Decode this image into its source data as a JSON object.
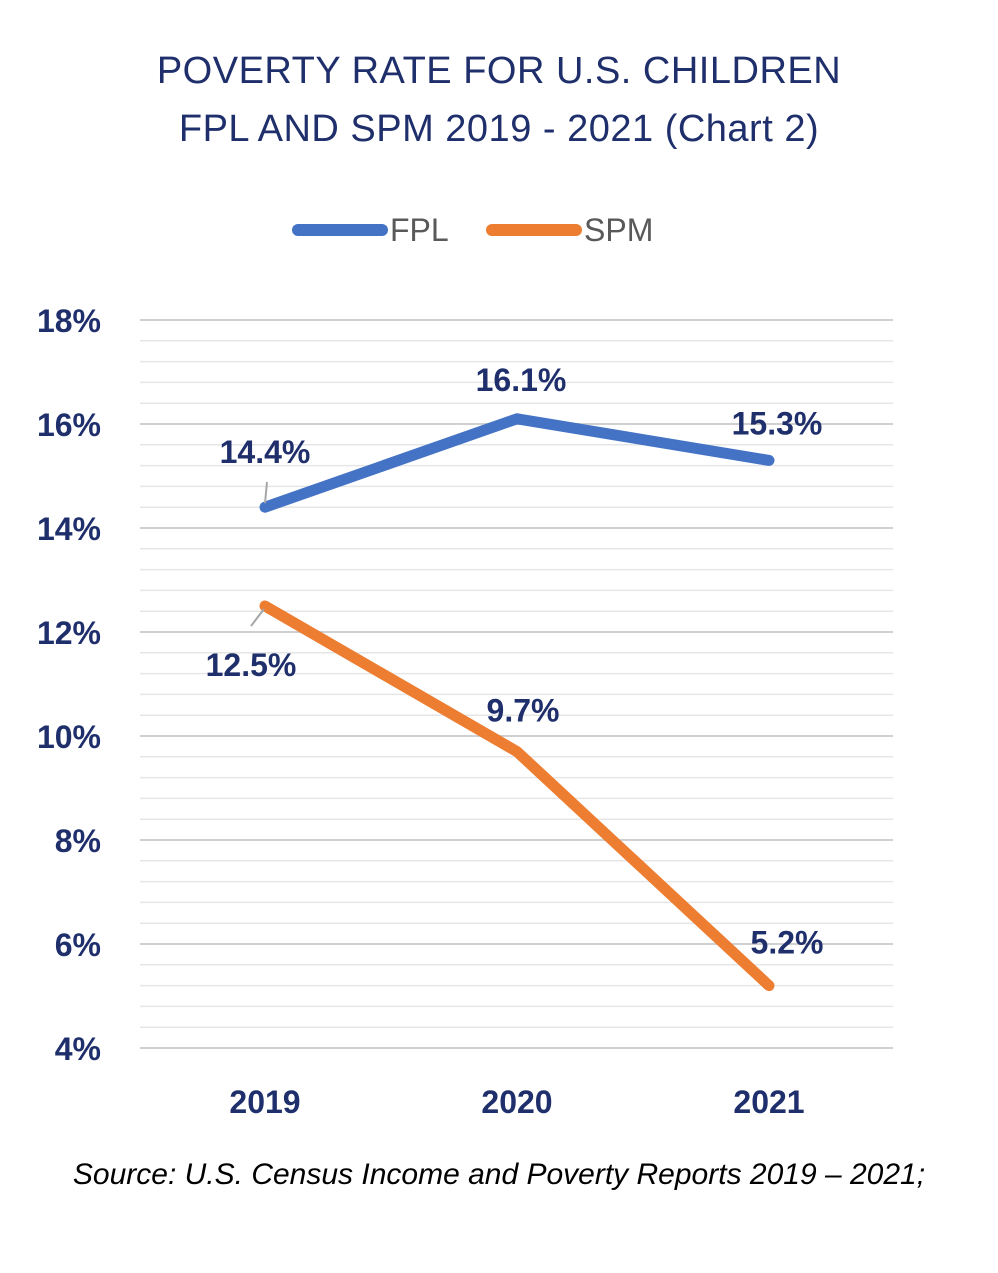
{
  "title_line1": "POVERTY RATE FOR U.S. CHILDREN",
  "title_line2": "FPL AND SPM 2019 - 2021 (Chart 2)",
  "source": "Source: U.S. Census Income and Poverty Reports 2019 – 2021;",
  "colors": {
    "fpl": "#4472c4",
    "spm": "#ed7d31",
    "text": "#1f2f6b",
    "grid": "#d9d9d9"
  },
  "chart_data": {
    "type": "line",
    "categories": [
      "2019",
      "2020",
      "2021"
    ],
    "series": [
      {
        "name": "FPL",
        "values": [
          14.4,
          16.1,
          15.3
        ],
        "labels": [
          "14.4%",
          "16.1%",
          "15.3%"
        ]
      },
      {
        "name": "SPM",
        "values": [
          12.5,
          9.7,
          5.2
        ],
        "labels": [
          "12.5%",
          "9.7%",
          "5.2%"
        ]
      }
    ],
    "ylim": [
      4,
      18
    ],
    "yticks": [
      "4%",
      "6%",
      "8%",
      "10%",
      "12%",
      "14%",
      "16%",
      "18%"
    ],
    "grid": true,
    "legend": "top-center"
  }
}
